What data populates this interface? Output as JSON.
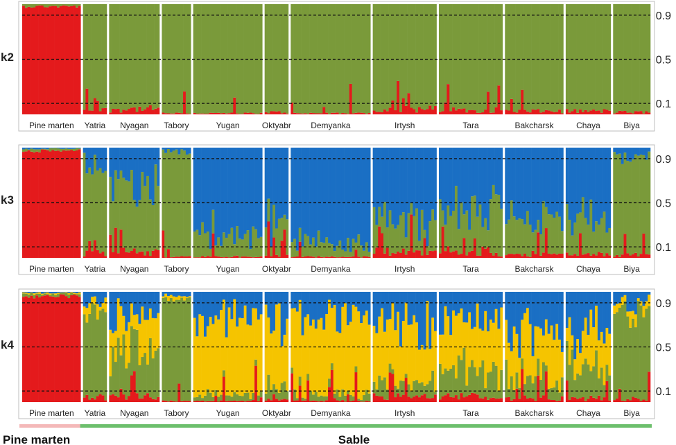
{
  "chart_data": {
    "type": "stacked-bar",
    "description_free": true,
    "colors": {
      "cluster_red": "#e41a1c",
      "cluster_green": "#7a9a3a",
      "cluster_blue": "#1a6fc4",
      "cluster_yellow": "#f5c400",
      "pine_marten_bar": "#f4b8b8",
      "sable_bar": "#6cbf6c"
    },
    "y_ticks": [
      "0.9",
      "0.5",
      "0.1"
    ],
    "populations": [
      "Pine marten",
      "Yatria",
      "Nyagan",
      "Tabory",
      "Yugan",
      "Oktyabr",
      "Demyanka",
      "Irtysh",
      "Tara",
      "Bakcharsk",
      "Chaya",
      "Biya"
    ],
    "population_sizes": [
      22,
      9,
      19,
      11,
      26,
      9,
      30,
      24,
      24,
      22,
      17,
      14
    ],
    "panels": [
      {
        "label": "k2",
        "clusters": [
          "cluster_red",
          "cluster_green"
        ],
        "mean_membership": [
          {
            "population": "Pine marten",
            "values": [
              0.98,
              0.02
            ]
          },
          {
            "population": "Yatria",
            "values": [
              0.04,
              0.96
            ]
          },
          {
            "population": "Nyagan",
            "values": [
              0.05,
              0.95
            ]
          },
          {
            "population": "Tabory",
            "values": [
              0.01,
              0.99
            ]
          },
          {
            "population": "Yugan",
            "values": [
              0.01,
              0.99
            ]
          },
          {
            "population": "Oktyabr",
            "values": [
              0.02,
              0.98
            ]
          },
          {
            "population": "Demyanka",
            "values": [
              0.01,
              0.99
            ]
          },
          {
            "population": "Irtysh",
            "values": [
              0.05,
              0.95
            ]
          },
          {
            "population": "Tara",
            "values": [
              0.04,
              0.96
            ]
          },
          {
            "population": "Bakcharsk",
            "values": [
              0.03,
              0.97
            ]
          },
          {
            "population": "Chaya",
            "values": [
              0.03,
              0.97
            ]
          },
          {
            "population": "Biya",
            "values": [
              0.02,
              0.98
            ]
          }
        ]
      },
      {
        "label": "k3",
        "clusters": [
          "cluster_red",
          "cluster_green",
          "cluster_blue"
        ],
        "mean_membership": [
          {
            "population": "Pine marten",
            "values": [
              0.97,
              0.02,
              0.01
            ]
          },
          {
            "population": "Yatria",
            "values": [
              0.04,
              0.8,
              0.16
            ]
          },
          {
            "population": "Nyagan",
            "values": [
              0.05,
              0.55,
              0.4
            ]
          },
          {
            "population": "Tabory",
            "values": [
              0.01,
              0.95,
              0.04
            ]
          },
          {
            "population": "Yugan",
            "values": [
              0.01,
              0.2,
              0.79
            ]
          },
          {
            "population": "Oktyabr",
            "values": [
              0.02,
              0.25,
              0.73
            ]
          },
          {
            "population": "Demyanka",
            "values": [
              0.01,
              0.12,
              0.87
            ]
          },
          {
            "population": "Irtysh",
            "values": [
              0.05,
              0.25,
              0.7
            ]
          },
          {
            "population": "Tara",
            "values": [
              0.04,
              0.4,
              0.56
            ]
          },
          {
            "population": "Bakcharsk",
            "values": [
              0.03,
              0.3,
              0.67
            ]
          },
          {
            "population": "Chaya",
            "values": [
              0.03,
              0.35,
              0.62
            ]
          },
          {
            "population": "Biya",
            "values": [
              0.02,
              0.9,
              0.08
            ]
          }
        ]
      },
      {
        "label": "k4",
        "clusters": [
          "cluster_red",
          "cluster_green",
          "cluster_yellow",
          "cluster_blue"
        ],
        "mean_membership": [
          {
            "population": "Pine marten",
            "values": [
              0.96,
              0.02,
              0.01,
              0.01
            ]
          },
          {
            "population": "Yatria",
            "values": [
              0.04,
              0.78,
              0.08,
              0.1
            ]
          },
          {
            "population": "Nyagan",
            "values": [
              0.05,
              0.45,
              0.3,
              0.2
            ]
          },
          {
            "population": "Tabory",
            "values": [
              0.01,
              0.93,
              0.03,
              0.03
            ]
          },
          {
            "population": "Yugan",
            "values": [
              0.01,
              0.06,
              0.68,
              0.25
            ]
          },
          {
            "population": "Oktyabr",
            "values": [
              0.02,
              0.1,
              0.6,
              0.28
            ]
          },
          {
            "population": "Demyanka",
            "values": [
              0.01,
              0.05,
              0.7,
              0.24
            ]
          },
          {
            "population": "Irtysh",
            "values": [
              0.05,
              0.1,
              0.55,
              0.3
            ]
          },
          {
            "population": "Tara",
            "values": [
              0.04,
              0.25,
              0.45,
              0.26
            ]
          },
          {
            "population": "Bakcharsk",
            "values": [
              0.03,
              0.15,
              0.45,
              0.37
            ]
          },
          {
            "population": "Chaya",
            "values": [
              0.03,
              0.3,
              0.3,
              0.37
            ]
          },
          {
            "population": "Biya",
            "values": [
              0.02,
              0.8,
              0.08,
              0.1
            ]
          }
        ]
      }
    ],
    "groups": [
      {
        "label": "Pine marten",
        "color_key": "pine_marten_bar",
        "populations": [
          "Pine marten"
        ]
      },
      {
        "label": "Sable",
        "color_key": "sable_bar",
        "populations": [
          "Yatria",
          "Nyagan",
          "Tabory",
          "Yugan",
          "Oktyabr",
          "Demyanka",
          "Irtysh",
          "Tara",
          "Bakcharsk",
          "Chaya",
          "Biya"
        ]
      }
    ]
  }
}
